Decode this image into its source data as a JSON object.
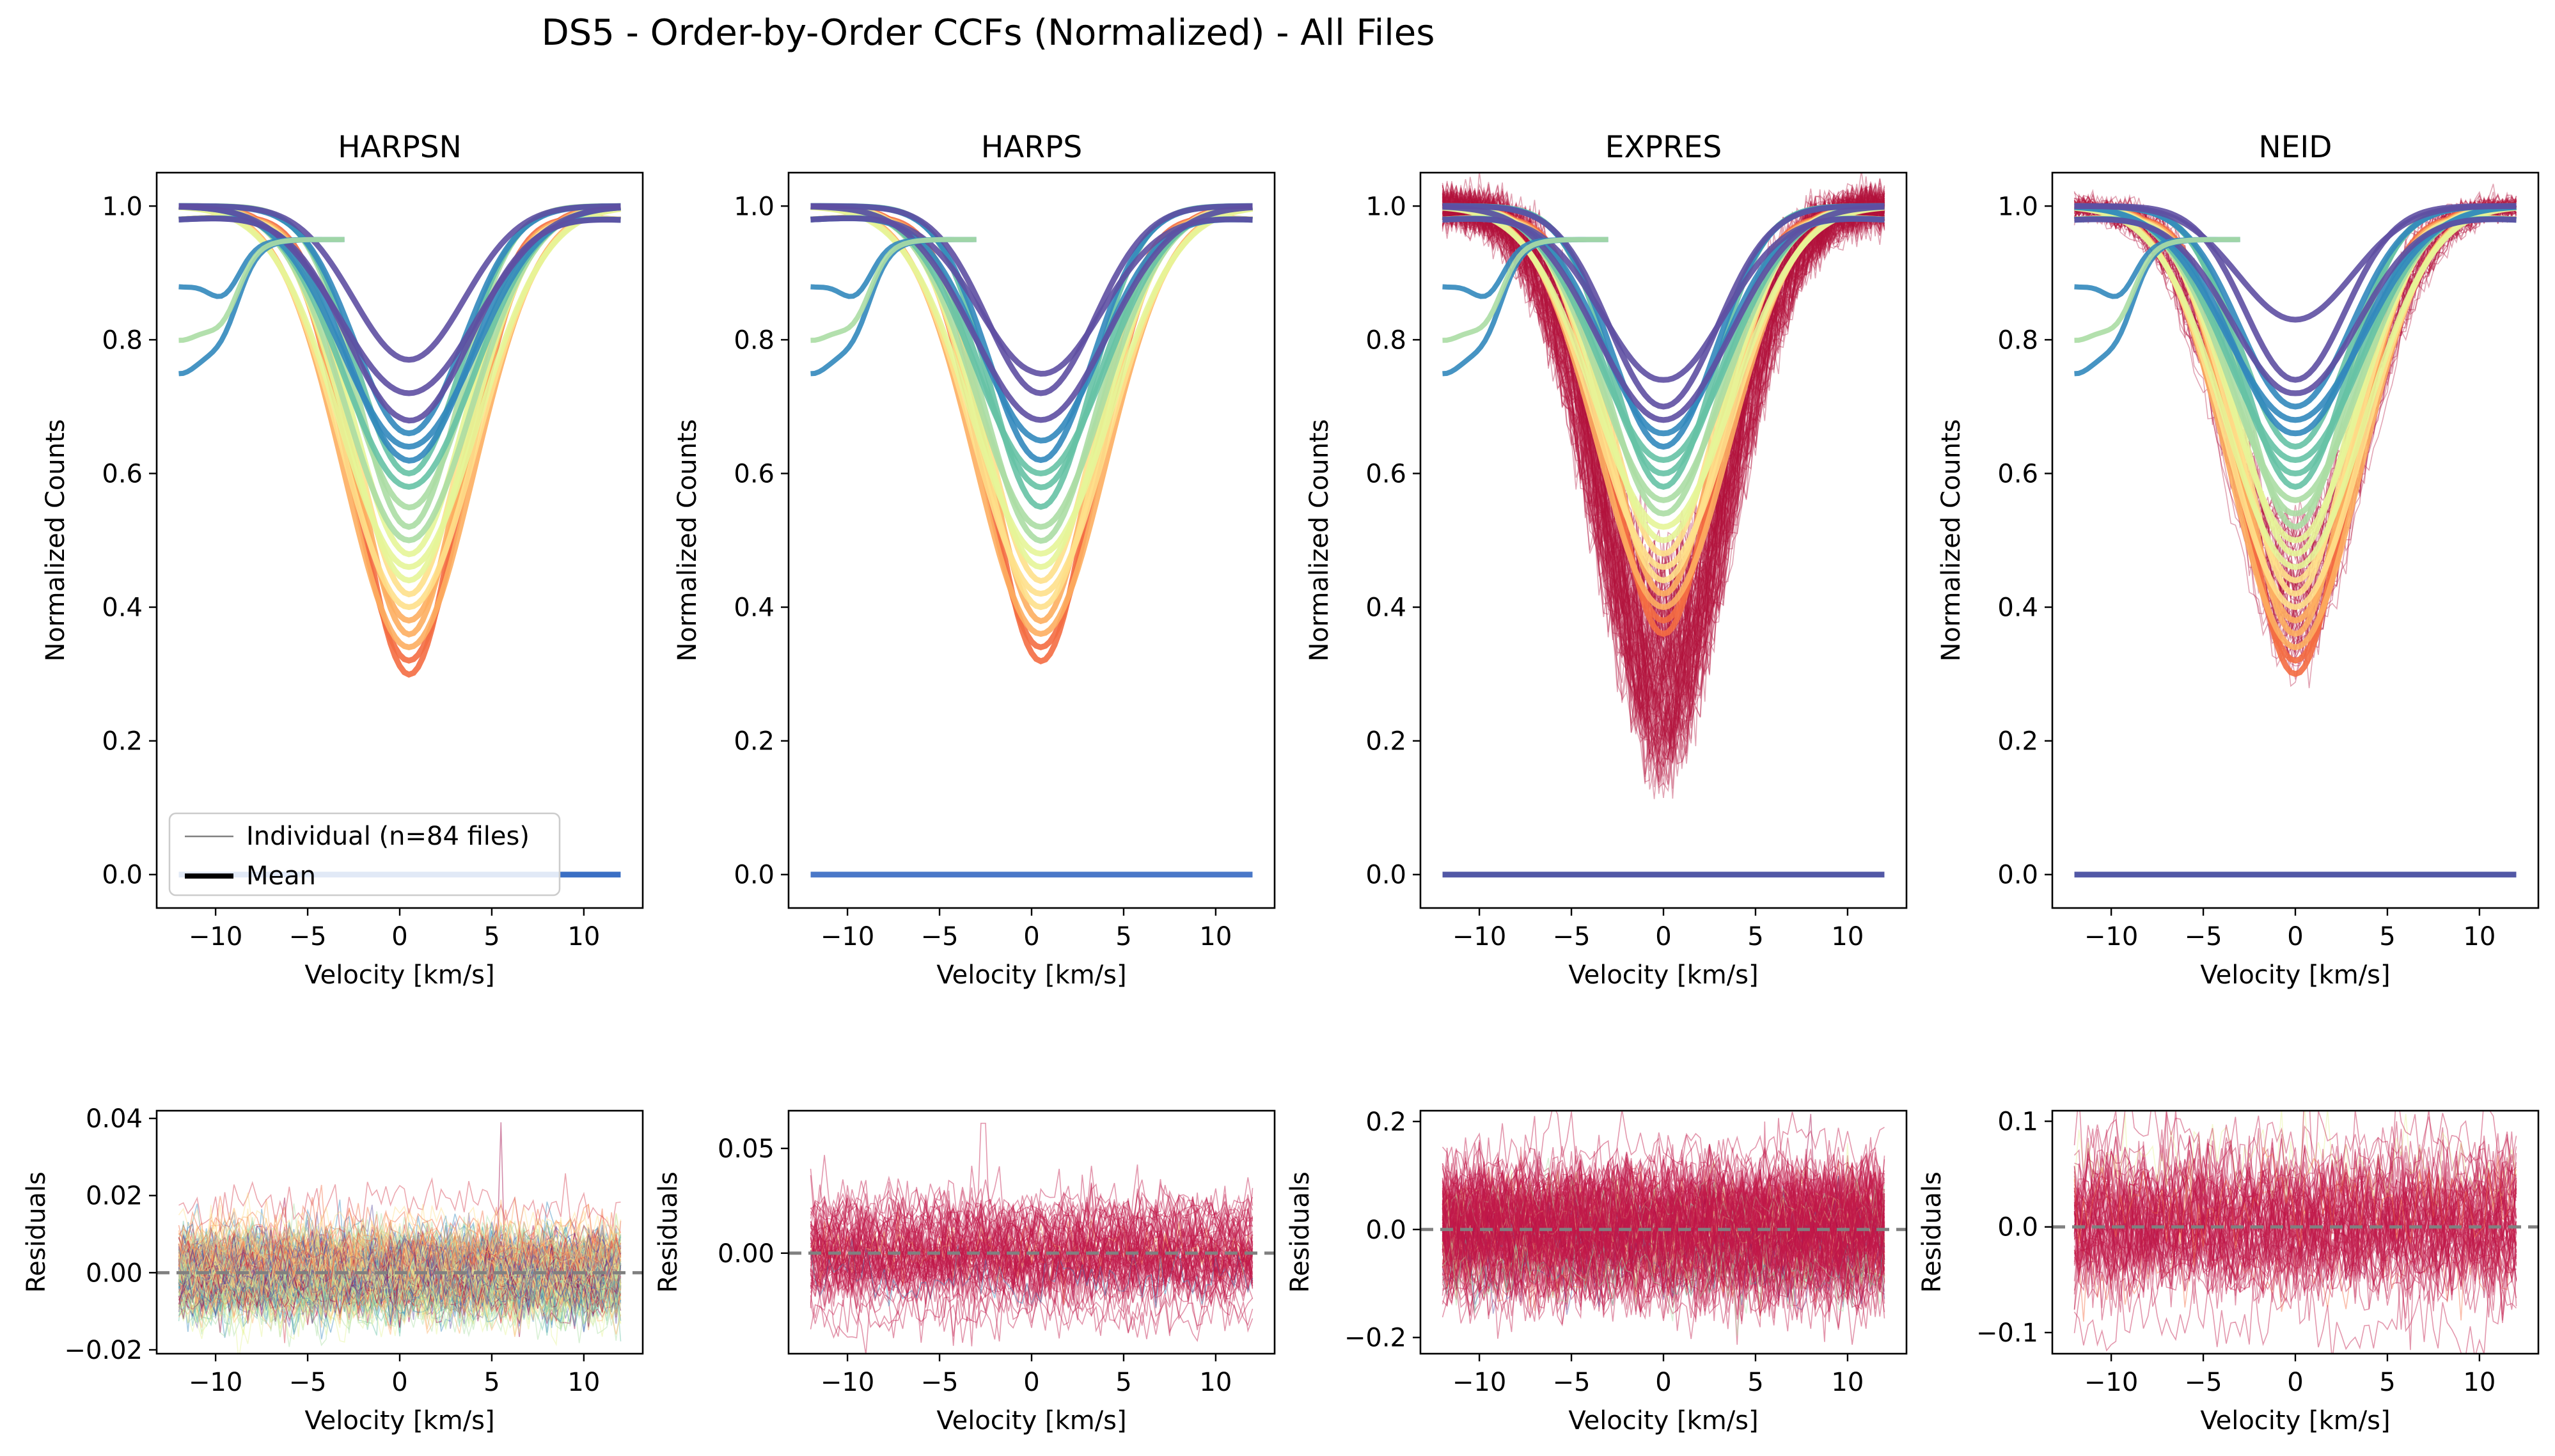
{
  "figure_title": "DS5 - Order-by-Order CCFs (Normalized) - All Files",
  "legend": {
    "individual_label": "Individual (n=84 files)",
    "mean_label": "Mean"
  },
  "colors": {
    "spectral": [
      "#9e0142",
      "#d53e4f",
      "#f46d43",
      "#fdae61",
      "#fee08b",
      "#e6f598",
      "#abdda4",
      "#66c2a5",
      "#3288bd",
      "#5e4fa2"
    ],
    "residual_zero_line": "#808080",
    "individual_legend": "#808080",
    "mean_legend": "#000000"
  },
  "chart_data": [
    {
      "type": "line",
      "title": "HARPSN",
      "xlabel": "Velocity [km/s]",
      "ylabel": "Normalized Counts",
      "xlim": [
        -13.2,
        13.2
      ],
      "ylim": [
        -0.05,
        1.05
      ],
      "xticks": [
        -10,
        -5,
        0,
        5,
        10
      ],
      "xtick_labels": [
        "−10",
        "−5",
        "0",
        "5",
        "10"
      ],
      "yticks": [
        0.0,
        0.2,
        0.4,
        0.6,
        0.8,
        1.0
      ],
      "ytick_labels": [
        "0.0",
        "0.2",
        "0.4",
        "0.6",
        "0.8",
        "1.0"
      ],
      "velocity_range": [
        -12,
        12
      ],
      "n_files": 84,
      "line_center": 0.5,
      "order_min_depths": [
        0.3,
        0.32,
        0.34,
        0.36,
        0.38,
        0.4,
        0.42,
        0.44,
        0.46,
        0.48,
        0.5,
        0.52,
        0.55,
        0.58,
        0.6,
        0.62,
        0.64,
        0.66,
        0.68,
        0.72,
        0.77
      ],
      "zero_order": {
        "y": 0.0
      },
      "legend_location": "lower left"
    },
    {
      "type": "line",
      "title": "HARPS",
      "xlabel": "Velocity [km/s]",
      "ylabel": "Normalized Counts",
      "xlim": [
        -13.2,
        13.2
      ],
      "ylim": [
        -0.05,
        1.05
      ],
      "xticks": [
        -10,
        -5,
        0,
        5,
        10
      ],
      "xtick_labels": [
        "−10",
        "−5",
        "0",
        "5",
        "10"
      ],
      "yticks": [
        0.0,
        0.2,
        0.4,
        0.6,
        0.8,
        1.0
      ],
      "ytick_labels": [
        "0.0",
        "0.2",
        "0.4",
        "0.6",
        "0.8",
        "1.0"
      ],
      "velocity_range": [
        -12,
        12
      ],
      "line_center": 0.5,
      "order_min_depths": [
        0.32,
        0.34,
        0.36,
        0.38,
        0.4,
        0.42,
        0.44,
        0.46,
        0.48,
        0.5,
        0.52,
        0.55,
        0.58,
        0.6,
        0.62,
        0.65,
        0.68,
        0.72,
        0.75
      ],
      "zero_order": {
        "y": 0.0
      }
    },
    {
      "type": "line",
      "title": "EXPRES",
      "xlabel": "Velocity [km/s]",
      "ylabel": "Normalized Counts",
      "xlim": [
        -13.2,
        13.2
      ],
      "ylim": [
        -0.05,
        1.05
      ],
      "xticks": [
        -10,
        -5,
        0,
        5,
        10
      ],
      "xtick_labels": [
        "−10",
        "−5",
        "0",
        "5",
        "10"
      ],
      "yticks": [
        0.0,
        0.2,
        0.4,
        0.6,
        0.8,
        1.0
      ],
      "ytick_labels": [
        "0.0",
        "0.2",
        "0.4",
        "0.6",
        "0.8",
        "1.0"
      ],
      "velocity_range": [
        -12,
        12
      ],
      "line_center": 0.0,
      "order_min_depths": [
        0.36,
        0.38,
        0.4,
        0.42,
        0.44,
        0.46,
        0.48,
        0.5,
        0.52,
        0.54,
        0.56,
        0.58,
        0.6,
        0.62,
        0.64,
        0.66,
        0.68,
        0.7,
        0.74
      ],
      "noisy_min_range": [
        0.17,
        0.45
      ],
      "zero_order": {
        "y": 0.0
      }
    },
    {
      "type": "line",
      "title": "NEID",
      "xlabel": "Velocity [km/s]",
      "ylabel": "Normalized Counts",
      "xlim": [
        -13.2,
        13.2
      ],
      "ylim": [
        -0.05,
        1.05
      ],
      "xticks": [
        -10,
        -5,
        0,
        5,
        10
      ],
      "xtick_labels": [
        "−10",
        "−5",
        "0",
        "5",
        "10"
      ],
      "yticks": [
        0.0,
        0.2,
        0.4,
        0.6,
        0.8,
        1.0
      ],
      "ytick_labels": [
        "0.0",
        "0.2",
        "0.4",
        "0.6",
        "0.8",
        "1.0"
      ],
      "velocity_range": [
        -12,
        12
      ],
      "line_center": 0.0,
      "order_min_depths": [
        0.3,
        0.32,
        0.34,
        0.36,
        0.38,
        0.4,
        0.42,
        0.44,
        0.46,
        0.48,
        0.5,
        0.52,
        0.54,
        0.56,
        0.58,
        0.6,
        0.62,
        0.64,
        0.66,
        0.68,
        0.7,
        0.72,
        0.74,
        0.83
      ],
      "zero_order": {
        "y": 0.0
      }
    },
    {
      "type": "line",
      "xlabel": "Velocity [km/s]",
      "ylabel": "Residuals",
      "xlim": [
        -13.2,
        13.2
      ],
      "ylim": [
        -0.021,
        0.042
      ],
      "xticks": [
        -10,
        -5,
        0,
        5,
        10
      ],
      "xtick_labels": [
        "−10",
        "−5",
        "0",
        "5",
        "10"
      ],
      "yticks": [
        -0.02,
        0.0,
        0.02,
        0.04
      ],
      "ytick_labels": [
        "−0.02",
        "0.00",
        "0.02",
        "0.04"
      ],
      "residual_amplitude": 0.006,
      "residual_peak": 0.039,
      "reference_line_y": 0.0
    },
    {
      "type": "line",
      "xlabel": "Velocity [km/s]",
      "ylabel": "Residuals",
      "xlim": [
        -13.2,
        13.2
      ],
      "ylim": [
        -0.048,
        0.068
      ],
      "xticks": [
        -10,
        -5,
        0,
        5,
        10
      ],
      "xtick_labels": [
        "−10",
        "−5",
        "0",
        "5",
        "10"
      ],
      "yticks": [
        0.0,
        0.05
      ],
      "ytick_labels": [
        "0.00",
        "0.05"
      ],
      "residual_amplitude": 0.012,
      "residual_peak": 0.062,
      "reference_line_y": 0.0
    },
    {
      "type": "line",
      "xlabel": "Velocity [km/s]",
      "ylabel": "Residuals",
      "xlim": [
        -13.2,
        13.2
      ],
      "ylim": [
        -0.23,
        0.22
      ],
      "xticks": [
        -10,
        -5,
        0,
        5,
        10
      ],
      "xtick_labels": [
        "−10",
        "−5",
        "0",
        "5",
        "10"
      ],
      "yticks": [
        -0.2,
        0.0,
        0.2
      ],
      "ytick_labels": [
        "−0.2",
        "0.0",
        "0.2"
      ],
      "residual_amplitude": 0.06,
      "residual_peak": 0.2,
      "reference_line_y": 0.0
    },
    {
      "type": "line",
      "xlabel": "Velocity [km/s]",
      "ylabel": "Residuals",
      "xlim": [
        -13.2,
        13.2
      ],
      "ylim": [
        -0.12,
        0.11
      ],
      "xticks": [
        -10,
        -5,
        0,
        5,
        10
      ],
      "xtick_labels": [
        "−10",
        "−5",
        "0",
        "5",
        "10"
      ],
      "yticks": [
        -0.1,
        0.0,
        0.1
      ],
      "ytick_labels": [
        "−0.1",
        "0.0",
        "0.1"
      ],
      "residual_amplitude": 0.035,
      "residual_peak": 0.1,
      "reference_line_y": 0.0
    }
  ]
}
